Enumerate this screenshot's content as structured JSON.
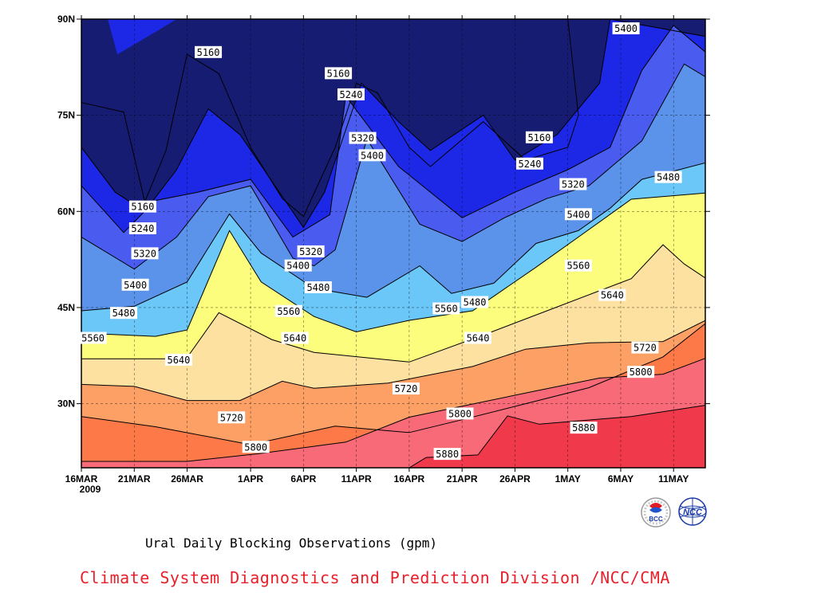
{
  "chart_data": {
    "type": "heatmap",
    "title": "Ural Daily Blocking Observations (gpm)",
    "credit": "Climate System Diagnostics and Prediction Division /NCC/CMA",
    "x_unit": "date",
    "x_range": [
      "2009-03-16",
      "2009-05-14"
    ],
    "x_ticks": [
      "16MAR",
      "21MAR",
      "26MAR",
      "1APR",
      "6APR",
      "11APR",
      "16APR",
      "21APR",
      "26APR",
      "1MAY",
      "6MAY",
      "11MAY"
    ],
    "x_tick_day_index": [
      0,
      5,
      10,
      16,
      21,
      26,
      31,
      36,
      41,
      46,
      51,
      56
    ],
    "x_extra_label": "2009",
    "y_range": [
      20,
      90
    ],
    "y_ticks": [
      {
        "value": 30,
        "label": "30N"
      },
      {
        "value": 45,
        "label": "45N"
      },
      {
        "value": 60,
        "label": "60N"
      },
      {
        "value": 75,
        "label": "75N"
      },
      {
        "value": 90,
        "label": "90N"
      }
    ],
    "grid": true,
    "levels": [
      5160,
      5240,
      5320,
      5400,
      5480,
      5560,
      5640,
      5720,
      5800,
      5880
    ],
    "band_colors": [
      "#161c72",
      "#1d28e6",
      "#4a5cf0",
      "#5b93eb",
      "#6cc7f9",
      "#fdfd7d",
      "#fde1a1",
      "#fca065",
      "#fd7a48",
      "#f86a77",
      "#f03a4b"
    ],
    "contours": [
      {
        "level": 5880,
        "points": [
          [
            31,
            20
          ],
          [
            32.6,
            21.6
          ],
          [
            37.5,
            22
          ],
          [
            40.3,
            28.1
          ],
          [
            43.3,
            26.8
          ],
          [
            52,
            28
          ],
          [
            60,
            30
          ]
        ]
      },
      {
        "level": 5800,
        "points": [
          [
            0,
            21
          ],
          [
            10,
            21
          ],
          [
            16.8,
            22.2
          ],
          [
            25,
            24
          ],
          [
            31,
            27.9
          ],
          [
            43,
            32
          ],
          [
            49,
            34
          ],
          [
            55,
            34.6
          ],
          [
            60,
            37.7
          ]
        ]
      },
      {
        "level": 5720,
        "points": [
          [
            0,
            28
          ],
          [
            7,
            26.4
          ],
          [
            16,
            23.6
          ],
          [
            24,
            26.5
          ],
          [
            31,
            25.5
          ],
          [
            36,
            27.5
          ],
          [
            42,
            30
          ],
          [
            48,
            32.5
          ],
          [
            55,
            37.3
          ],
          [
            60,
            43.8
          ]
        ]
      },
      {
        "level": 5640,
        "points": [
          [
            0,
            33
          ],
          [
            5,
            32.7
          ],
          [
            10,
            30.5
          ],
          [
            15,
            30.5
          ],
          [
            19,
            33.5
          ],
          [
            22,
            32.4
          ],
          [
            29,
            33.2
          ],
          [
            37,
            35.8
          ],
          [
            42,
            38.5
          ],
          [
            48,
            39.5
          ],
          [
            55,
            39.7
          ],
          [
            60,
            43.8
          ]
        ]
      },
      {
        "level": 5560,
        "points": [
          [
            0,
            37
          ],
          [
            8,
            37
          ],
          [
            10,
            37.2
          ],
          [
            13,
            44.2
          ],
          [
            18,
            40
          ],
          [
            22,
            38
          ],
          [
            31,
            36.5
          ],
          [
            38,
            40.7
          ],
          [
            45,
            45.1
          ],
          [
            52,
            49.5
          ],
          [
            55,
            54.8
          ],
          [
            57,
            51.8
          ],
          [
            60,
            48.5
          ]
        ]
      },
      {
        "level": 5480,
        "points": [
          [
            0,
            41
          ],
          [
            7,
            40.5
          ],
          [
            10,
            41.5
          ],
          [
            14,
            57
          ],
          [
            17,
            49
          ],
          [
            22,
            43.6
          ],
          [
            26,
            41.2
          ],
          [
            31,
            43
          ],
          [
            37,
            44.5
          ],
          [
            43,
            51.3
          ],
          [
            47,
            56
          ],
          [
            52,
            61.9
          ],
          [
            60,
            63
          ]
        ]
      },
      {
        "level": 5400,
        "points": [
          [
            0,
            44.5
          ],
          [
            5,
            45.2
          ],
          [
            10,
            49
          ],
          [
            14,
            59.6
          ],
          [
            17,
            53.5
          ],
          [
            22,
            48
          ],
          [
            27,
            46.6
          ],
          [
            32,
            51.5
          ],
          [
            35,
            47.2
          ],
          [
            39,
            48.8
          ],
          [
            43,
            55
          ],
          [
            47,
            57
          ],
          [
            50,
            60.5
          ],
          [
            53,
            65
          ],
          [
            60,
            68
          ]
        ]
      },
      {
        "level": 5320,
        "points": [
          [
            0,
            56
          ],
          [
            5,
            51
          ],
          [
            9,
            56
          ],
          [
            12,
            62.3
          ],
          [
            16,
            64
          ],
          [
            20,
            52.7
          ],
          [
            22,
            51.5
          ],
          [
            24,
            54
          ],
          [
            27,
            71.3
          ],
          [
            32,
            58
          ],
          [
            36,
            55.3
          ],
          [
            40,
            59
          ],
          [
            44,
            62
          ],
          [
            48,
            64
          ],
          [
            53,
            71
          ],
          [
            57,
            83
          ],
          [
            60,
            80
          ]
        ]
      },
      {
        "level": 5240,
        "points": [
          [
            0,
            64
          ],
          [
            4,
            56.7
          ],
          [
            7,
            61.7
          ],
          [
            11,
            63
          ],
          [
            16,
            65
          ],
          [
            20,
            56
          ],
          [
            23.5,
            59.5
          ],
          [
            25,
            78
          ],
          [
            30,
            67
          ],
          [
            36,
            59
          ],
          [
            41,
            63
          ],
          [
            46,
            66.5
          ],
          [
            50,
            70
          ],
          [
            53,
            82
          ],
          [
            56,
            89
          ],
          [
            60,
            83.5
          ]
        ]
      },
      {
        "level": 5160,
        "points": [
          [
            0,
            70
          ],
          [
            3.2,
            63
          ],
          [
            6,
            60
          ],
          [
            9,
            66.5
          ],
          [
            12,
            76
          ],
          [
            15,
            72
          ],
          [
            21,
            57.5
          ],
          [
            23,
            63
          ],
          [
            26.5,
            80
          ],
          [
            30,
            74
          ],
          [
            33,
            69.5
          ],
          [
            38,
            75
          ],
          [
            41,
            68
          ],
          [
            45,
            72
          ],
          [
            49,
            80
          ],
          [
            50,
            90
          ],
          [
            60,
            87
          ]
        ]
      },
      {
        "level": 5160,
        "points": [
          [
            0,
            77
          ],
          [
            4,
            75.5
          ],
          [
            6,
            61.5
          ],
          [
            8,
            69.5
          ],
          [
            10,
            84.5
          ],
          [
            13,
            81.5
          ],
          [
            16,
            70
          ],
          [
            19,
            62
          ],
          [
            21,
            59.2
          ],
          [
            24,
            70
          ],
          [
            26,
            80
          ],
          [
            28,
            78.5
          ],
          [
            31,
            70
          ],
          [
            33,
            67
          ],
          [
            38,
            74
          ],
          [
            42,
            68
          ],
          [
            46,
            70
          ],
          [
            47,
            75
          ],
          [
            46,
            90
          ]
        ]
      }
    ],
    "inner_band": {
      "level": 5160,
      "points": [
        [
          2.5,
          90
        ],
        [
          3.4,
          84.5
        ],
        [
          7,
          88
        ],
        [
          9,
          90
        ]
      ]
    },
    "contour_labels": [
      {
        "text": "5160",
        "x": 12,
        "y": 84.8
      },
      {
        "text": "5160",
        "x": 24.3,
        "y": 81.5
      },
      {
        "text": "5160",
        "x": 43.3,
        "y": 71.5
      },
      {
        "text": "5160",
        "x": 5.8,
        "y": 60.7
      },
      {
        "text": "5240",
        "x": 25.5,
        "y": 78.2
      },
      {
        "text": "5240",
        "x": 42.4,
        "y": 67.4
      },
      {
        "text": "5240",
        "x": 5.8,
        "y": 57.3
      },
      {
        "text": "5320",
        "x": 26.6,
        "y": 71.4
      },
      {
        "text": "5320",
        "x": 46.5,
        "y": 64.2
      },
      {
        "text": "5320",
        "x": 6,
        "y": 53.4
      },
      {
        "text": "5320",
        "x": 21.7,
        "y": 53.7
      },
      {
        "text": "5400",
        "x": 27.5,
        "y": 68.7
      },
      {
        "text": "5400",
        "x": 47,
        "y": 59.5
      },
      {
        "text": "5400",
        "x": 5.1,
        "y": 48.5
      },
      {
        "text": "5400",
        "x": 20.5,
        "y": 51.5
      },
      {
        "text": "5400",
        "x": 51.5,
        "y": 88.5
      },
      {
        "text": "5480",
        "x": 55.5,
        "y": 65.3
      },
      {
        "text": "5480",
        "x": 22.4,
        "y": 48.1
      },
      {
        "text": "5480",
        "x": 4,
        "y": 44.1
      },
      {
        "text": "5480",
        "x": 37.2,
        "y": 45.8
      },
      {
        "text": "5560",
        "x": 47,
        "y": 51.5
      },
      {
        "text": "5560",
        "x": 19.6,
        "y": 44.4
      },
      {
        "text": "5560",
        "x": 34.5,
        "y": 44.8
      },
      {
        "text": "5560",
        "x": 1.1,
        "y": 40.2
      },
      {
        "text": "5640",
        "x": 50.2,
        "y": 46.9
      },
      {
        "text": "5640",
        "x": 20.2,
        "y": 40.2
      },
      {
        "text": "5640",
        "x": 37.5,
        "y": 40.2
      },
      {
        "text": "5640",
        "x": 9.2,
        "y": 36.8
      },
      {
        "text": "5720",
        "x": 53.3,
        "y": 38.7
      },
      {
        "text": "5720",
        "x": 30.7,
        "y": 32.3
      },
      {
        "text": "5720",
        "x": 14.2,
        "y": 27.8
      },
      {
        "text": "5800",
        "x": 52.9,
        "y": 34.9
      },
      {
        "text": "5800",
        "x": 35.8,
        "y": 28.4
      },
      {
        "text": "5800",
        "x": 16.5,
        "y": 23.2
      },
      {
        "text": "5880",
        "x": 47.5,
        "y": 26.2
      },
      {
        "text": "5880",
        "x": 34.6,
        "y": 22.1
      }
    ]
  },
  "logos": [
    {
      "name": "bcc-logo",
      "text": "BCC"
    },
    {
      "name": "ncc-logo",
      "text": "NCC"
    }
  ]
}
